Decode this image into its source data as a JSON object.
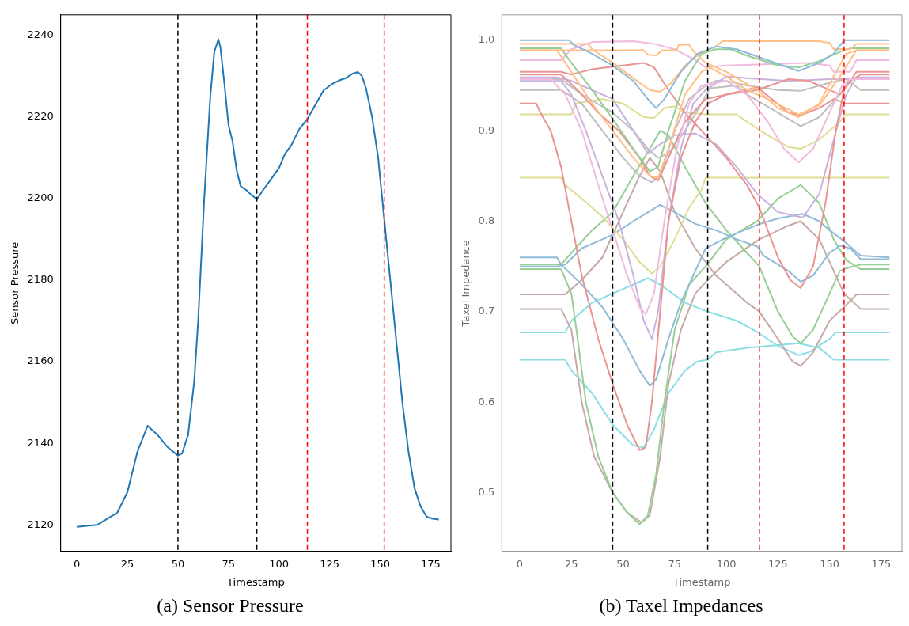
{
  "chart_data": [
    {
      "type": "line",
      "title": "(a) Sensor Pressure",
      "xlabel": "Timestamp",
      "ylabel": "Sensor Pressure",
      "xlim": [
        -8,
        185
      ],
      "ylim": [
        2113.5,
        2245
      ],
      "xticks": [
        0,
        25,
        50,
        75,
        100,
        125,
        150,
        175
      ],
      "yticks": [
        2120,
        2140,
        2160,
        2180,
        2200,
        2220,
        2240
      ],
      "x": [
        0,
        10,
        20,
        25,
        30,
        35,
        40,
        45,
        50,
        52,
        55,
        58,
        60,
        63,
        66,
        68,
        70,
        71,
        73,
        75,
        77,
        79,
        81,
        84,
        86,
        89,
        92,
        95,
        100,
        103,
        106,
        110,
        114,
        118,
        122,
        126,
        130,
        133,
        136,
        139,
        141,
        143,
        146,
        149,
        152,
        155,
        158,
        161,
        164,
        167,
        170,
        173,
        176,
        179
      ],
      "series": [
        {
          "color": "#1f77b4",
          "values": [
            2119.5,
            2120,
            2123,
            2128,
            2138,
            2144.3,
            2142,
            2139,
            2137,
            2137.5,
            2142,
            2155,
            2170,
            2200,
            2225,
            2236,
            2239,
            2237,
            2228,
            2218,
            2214,
            2207,
            2203,
            2202,
            2201,
            2199.8,
            2202,
            2204,
            2207.5,
            2211,
            2213,
            2217,
            2219.5,
            2223,
            2226.5,
            2228,
            2229,
            2229.5,
            2230.5,
            2231,
            2230,
            2227,
            2220,
            2210,
            2195,
            2180,
            2165,
            2150,
            2138,
            2129,
            2124.5,
            2122,
            2121.5,
            2121.3
          ]
        }
      ],
      "ref_lines": [
        {
          "axis": "x",
          "value": 50,
          "color": "#000000",
          "line_style": "dashed"
        },
        {
          "axis": "x",
          "value": 89,
          "color": "#000000",
          "line_style": "dashed"
        },
        {
          "axis": "x",
          "value": 114,
          "color": "#ff0000",
          "line_style": "dashed"
        },
        {
          "axis": "x",
          "value": 152,
          "color": "#ff0000",
          "line_style": "dashed"
        }
      ]
    },
    {
      "type": "line",
      "title": "(b) Taxel Impedances",
      "xlabel": "Timestamp",
      "ylabel": "Taxel Impedance",
      "xlim": [
        -8.7,
        185
      ],
      "ylim": [
        0.435,
        1.028
      ],
      "xticks": [
        0,
        25,
        50,
        75,
        100,
        125,
        150,
        175
      ],
      "yticks": [
        0.5,
        0.6,
        0.7,
        0.8,
        0.9,
        {
          "value": 1,
          "label": "1.0"
        }
      ],
      "series": [
        {
          "color": "#8fbbd9",
          "x": [
            0,
            24,
            26,
            35,
            45,
            55,
            62,
            66,
            70,
            78,
            86,
            95,
            105,
            120,
            135,
            145,
            152,
            157,
            179
          ],
          "values": [
            1,
            1,
            0.995,
            0.985,
            0.972,
            0.955,
            0.935,
            0.925,
            0.935,
            0.965,
            0.985,
            0.993,
            0.99,
            0.978,
            0.966,
            0.975,
            0.985,
            1,
            1
          ]
        },
        {
          "color": "#ffbf86",
          "x": [
            0,
            33,
            35,
            45,
            55,
            63,
            68,
            73,
            80,
            87,
            95,
            98,
            145,
            150,
            152,
            160,
            163,
            179
          ],
          "values": [
            0.996,
            0.996,
            0.99,
            0.975,
            0.958,
            0.945,
            0.943,
            0.952,
            0.972,
            0.985,
            0.993,
            0.999,
            0.999,
            0.997,
            0.99,
            0.99,
            0.996,
            0.996
          ]
        },
        {
          "color": "#ffbf86",
          "x": [
            0,
            60,
            62,
            66,
            69,
            76,
            77,
            82,
            84,
            90,
            100,
            115,
            125,
            135,
            145,
            152,
            158,
            163,
            179
          ],
          "values": [
            0.989,
            0.989,
            0.984,
            0.983,
            0.989,
            0.989,
            0.995,
            0.995,
            0.988,
            0.975,
            0.965,
            0.945,
            0.925,
            0.915,
            0.93,
            0.96,
            0.985,
            0.989,
            0.989
          ]
        },
        {
          "color": "#ffbf86",
          "x": [
            0,
            18,
            25,
            35,
            45,
            55,
            63,
            67,
            72,
            80,
            88,
            92,
            100,
            110,
            120,
            135,
            145,
            155,
            163,
            179
          ],
          "values": [
            0.989,
            0.989,
            0.965,
            0.93,
            0.9,
            0.87,
            0.85,
            0.848,
            0.88,
            0.94,
            0.965,
            0.97,
            0.96,
            0.945,
            0.935,
            0.918,
            0.928,
            0.96,
            0.989,
            0.989
          ]
        },
        {
          "color": "#95cf95",
          "x": [
            0,
            20,
            25,
            35,
            45,
            55,
            63,
            67,
            72,
            80,
            88,
            95,
            102,
            110,
            125,
            135,
            145,
            155,
            160,
            179
          ],
          "values": [
            0.991,
            0.991,
            0.975,
            0.945,
            0.913,
            0.88,
            0.855,
            0.86,
            0.9,
            0.955,
            0.985,
            0.99,
            0.99,
            0.983,
            0.972,
            0.97,
            0.977,
            0.987,
            0.991,
            0.991
          ]
        },
        {
          "color": "#f1bbe0",
          "x": [
            0,
            20,
            25,
            35,
            55,
            65,
            75,
            85,
            90,
            100,
            140,
            150,
            152,
            160,
            163,
            179
          ],
          "values": [
            0.978,
            0.978,
            0.99,
            0.998,
            0.999,
            0.996,
            0.99,
            0.978,
            0.97,
            0.972,
            0.975,
            0.972,
            0.965,
            0.965,
            0.978,
            0.978
          ]
        },
        {
          "color": "#f1bbe0",
          "x": [
            0,
            15,
            22,
            30,
            38,
            45,
            52,
            58,
            61,
            65,
            70,
            76,
            82,
            88,
            100,
            110,
            120,
            128,
            135,
            142,
            150,
            156,
            160,
            179
          ],
          "values": [
            0.957,
            0.957,
            0.94,
            0.9,
            0.84,
            0.79,
            0.74,
            0.705,
            0.697,
            0.72,
            0.8,
            0.88,
            0.93,
            0.95,
            0.955,
            0.94,
            0.91,
            0.88,
            0.865,
            0.88,
            0.92,
            0.95,
            0.957,
            0.957
          ]
        },
        {
          "color": "#ea9393",
          "x": [
            0,
            20,
            25,
            35,
            50,
            60,
            65,
            72,
            80,
            90,
            100,
            110,
            116,
            125,
            131,
            136,
            142,
            148,
            153,
            157,
            163,
            179
          ],
          "values": [
            0.965,
            0.965,
            0.962,
            0.968,
            0.972,
            0.975,
            0.97,
            0.945,
            0.92,
            0.895,
            0.87,
            0.84,
            0.815,
            0.76,
            0.735,
            0.726,
            0.75,
            0.82,
            0.9,
            0.945,
            0.965,
            0.965
          ]
        },
        {
          "color": "#ea9393",
          "x": [
            0,
            20,
            28,
            38,
            48,
            58,
            63,
            67,
            72,
            80,
            90,
            100,
            115,
            130,
            140,
            150,
            155,
            160,
            165,
            179
          ],
          "values": [
            0.962,
            0.962,
            0.945,
            0.92,
            0.9,
            0.87,
            0.85,
            0.845,
            0.87,
            0.91,
            0.935,
            0.94,
            0.945,
            0.957,
            0.955,
            0.945,
            0.94,
            0.955,
            0.962,
            0.962
          ]
        },
        {
          "color": "#ea9393",
          "x": [
            0,
            8,
            10,
            15,
            20,
            25,
            30,
            38,
            45,
            52,
            58,
            61,
            64,
            68,
            72,
            78,
            85,
            91,
            100,
            115,
            122,
            130,
            136,
            145,
            152,
            158,
            179
          ],
          "values": [
            0.93,
            0.93,
            0.92,
            0.9,
            0.86,
            0.8,
            0.74,
            0.67,
            0.62,
            0.575,
            0.547,
            0.55,
            0.6,
            0.7,
            0.8,
            0.87,
            0.91,
            0.93,
            0.94,
            0.948,
            0.935,
            0.92,
            0.917,
            0.925,
            0.935,
            0.93,
            0.93
          ]
        },
        {
          "color": "#c9b3de",
          "x": [
            0,
            20,
            25,
            32,
            40,
            48,
            55,
            60,
            64,
            67,
            72,
            78,
            84,
            90,
            100,
            110,
            130,
            150,
            179
          ],
          "values": [
            0.955,
            0.955,
            0.94,
            0.9,
            0.85,
            0.8,
            0.74,
            0.69,
            0.67,
            0.7,
            0.8,
            0.88,
            0.93,
            0.945,
            0.96,
            0.958,
            0.955,
            0.957,
            0.957
          ]
        },
        {
          "color": "#c9b3de",
          "x": [
            0,
            18,
            25,
            45,
            55,
            62,
            68,
            75,
            85,
            95,
            105,
            115,
            125,
            137,
            145,
            152,
            158,
            163,
            179
          ],
          "values": [
            0.959,
            0.959,
            0.955,
            0.935,
            0.9,
            0.875,
            0.885,
            0.895,
            0.897,
            0.885,
            0.86,
            0.83,
            0.81,
            0.804,
            0.83,
            0.89,
            0.94,
            0.959,
            0.959
          ]
        },
        {
          "color": "#bfbfbf",
          "x": [
            0,
            20,
            30,
            45,
            55,
            62,
            67,
            72,
            80,
            88,
            92,
            105,
            110,
            125,
            136,
            145,
            155,
            160,
            179
          ],
          "values": [
            0.957,
            0.957,
            0.94,
            0.92,
            0.9,
            0.88,
            0.87,
            0.875,
            0.9,
            0.93,
            0.947,
            0.95,
            0.94,
            0.92,
            0.905,
            0.915,
            0.94,
            0.957,
            0.957
          ]
        },
        {
          "color": "#bfbfbf",
          "x": [
            0,
            20,
            30,
            40,
            50,
            58,
            64,
            68,
            75,
            82,
            90,
            95,
            100,
            110,
            125,
            136,
            150,
            158,
            165,
            179
          ],
          "values": [
            0.945,
            0.945,
            0.93,
            0.9,
            0.87,
            0.85,
            0.843,
            0.85,
            0.9,
            0.935,
            0.95,
            0.955,
            0.955,
            0.95,
            0.945,
            0.944,
            0.953,
            0.957,
            0.945,
            0.945
          ]
        },
        {
          "color": "#dede93",
          "x": [
            0,
            25,
            27,
            40,
            50,
            60,
            65,
            70,
            75,
            80,
            90,
            105,
            110,
            120,
            130,
            136,
            145,
            155,
            158,
            179
          ],
          "values": [
            0.918,
            0.918,
            0.93,
            0.935,
            0.93,
            0.915,
            0.914,
            0.925,
            0.927,
            0.92,
            0.918,
            0.918,
            0.91,
            0.895,
            0.882,
            0.88,
            0.89,
            0.91,
            0.918,
            0.918
          ]
        },
        {
          "color": "#dede93",
          "x": [
            0,
            20,
            22,
            30,
            40,
            50,
            58,
            64,
            68,
            75,
            82,
            88,
            90,
            179
          ],
          "values": [
            0.848,
            0.848,
            0.84,
            0.825,
            0.805,
            0.78,
            0.755,
            0.742,
            0.75,
            0.78,
            0.815,
            0.835,
            0.848,
            0.848
          ]
        },
        {
          "color": "#8fbbd9",
          "x": [
            0,
            18,
            20,
            30,
            40,
            50,
            58,
            63,
            66,
            72,
            78,
            85,
            88,
            90,
            100,
            115,
            125,
            137,
            145,
            150,
            157,
            165,
            179
          ],
          "values": [
            0.76,
            0.76,
            0.752,
            0.73,
            0.705,
            0.67,
            0.635,
            0.618,
            0.625,
            0.67,
            0.71,
            0.745,
            0.76,
            0.77,
            0.782,
            0.796,
            0.803,
            0.808,
            0.8,
            0.79,
            0.778,
            0.762,
            0.76
          ]
        },
        {
          "color": "#8fbbd9",
          "x": [
            0,
            18,
            22,
            30,
            45,
            55,
            68,
            75,
            85,
            95,
            105,
            115,
            118,
            130,
            136,
            142,
            150,
            155,
            160,
            165,
            179
          ],
          "values": [
            0.75,
            0.75,
            0.752,
            0.77,
            0.785,
            0.8,
            0.818,
            0.81,
            0.797,
            0.79,
            0.78,
            0.772,
            0.762,
            0.745,
            0.733,
            0.74,
            0.765,
            0.773,
            0.77,
            0.758,
            0.758
          ]
        },
        {
          "color": "#95cf95",
          "x": [
            0,
            20,
            25,
            35,
            45,
            55,
            63,
            68,
            72,
            80,
            90,
            100,
            110,
            116,
            125,
            132,
            136,
            142,
            150,
            155,
            158,
            165,
            179
          ],
          "values": [
            0.752,
            0.752,
            0.765,
            0.79,
            0.81,
            0.85,
            0.88,
            0.9,
            0.895,
            0.86,
            0.82,
            0.79,
            0.765,
            0.75,
            0.7,
            0.673,
            0.665,
            0.68,
            0.72,
            0.745,
            0.748,
            0.752,
            0.752
          ]
        },
        {
          "color": "#95cf95",
          "x": [
            0,
            20,
            25,
            28,
            32,
            38,
            45,
            52,
            58,
            62,
            66,
            70,
            75,
            82,
            90,
            100,
            115,
            125,
            136,
            145,
            152,
            158,
            165,
            179
          ],
          "values": [
            0.747,
            0.747,
            0.72,
            0.67,
            0.6,
            0.54,
            0.5,
            0.478,
            0.465,
            0.475,
            0.52,
            0.6,
            0.68,
            0.73,
            0.75,
            0.78,
            0.8,
            0.825,
            0.84,
            0.82,
            0.78,
            0.757,
            0.747,
            0.747
          ]
        },
        {
          "color": "#c5aaa5",
          "x": [
            0,
            22,
            30,
            40,
            50,
            58,
            63,
            68,
            75,
            85,
            95,
            110,
            116,
            125,
            132,
            136,
            142,
            150,
            157,
            163,
            179
          ],
          "values": [
            0.719,
            0.719,
            0.735,
            0.76,
            0.81,
            0.85,
            0.87,
            0.855,
            0.81,
            0.77,
            0.74,
            0.71,
            0.7,
            0.67,
            0.645,
            0.64,
            0.655,
            0.69,
            0.705,
            0.719,
            0.719
          ]
        },
        {
          "color": "#c5aaa5",
          "x": [
            0,
            20,
            25,
            30,
            36,
            45,
            52,
            59,
            63,
            68,
            72,
            78,
            85,
            91,
            100,
            116,
            130,
            136,
            145,
            152,
            157,
            165,
            179
          ],
          "values": [
            0.703,
            0.703,
            0.68,
            0.6,
            0.54,
            0.5,
            0.478,
            0.467,
            0.475,
            0.54,
            0.62,
            0.68,
            0.72,
            0.735,
            0.755,
            0.78,
            0.795,
            0.8,
            0.78,
            0.745,
            0.72,
            0.703,
            0.703
          ]
        },
        {
          "color": "#8bdee6",
          "x": [
            0,
            22,
            25,
            35,
            45,
            55,
            62,
            68,
            80,
            91,
            105,
            113,
            116,
            125,
            135,
            140,
            150,
            153,
            179
          ],
          "values": [
            0.677,
            0.677,
            0.69,
            0.71,
            0.72,
            0.73,
            0.737,
            0.73,
            0.71,
            0.7,
            0.69,
            0.68,
            0.676,
            0.662,
            0.652,
            0.655,
            0.67,
            0.677,
            0.677
          ]
        },
        {
          "color": "#8bdee6",
          "x": [
            0,
            22,
            25,
            35,
            45,
            55,
            60,
            65,
            72,
            80,
            86,
            91,
            95,
            110,
            125,
            135,
            145,
            152,
            179
          ],
          "values": [
            0.647,
            0.647,
            0.635,
            0.61,
            0.575,
            0.552,
            0.55,
            0.57,
            0.61,
            0.635,
            0.645,
            0.647,
            0.655,
            0.66,
            0.663,
            0.665,
            0.66,
            0.647,
            0.647
          ]
        }
      ],
      "ref_lines": [
        {
          "axis": "x",
          "value": 45,
          "color": "#000000",
          "line_style": "dashed"
        },
        {
          "axis": "x",
          "value": 91,
          "color": "#000000",
          "line_style": "dashed"
        },
        {
          "axis": "x",
          "value": 116,
          "color": "#ff0000",
          "line_style": "dashed"
        },
        {
          "axis": "x",
          "value": 157,
          "color": "#ff0000",
          "line_style": "dashed"
        }
      ]
    }
  ]
}
